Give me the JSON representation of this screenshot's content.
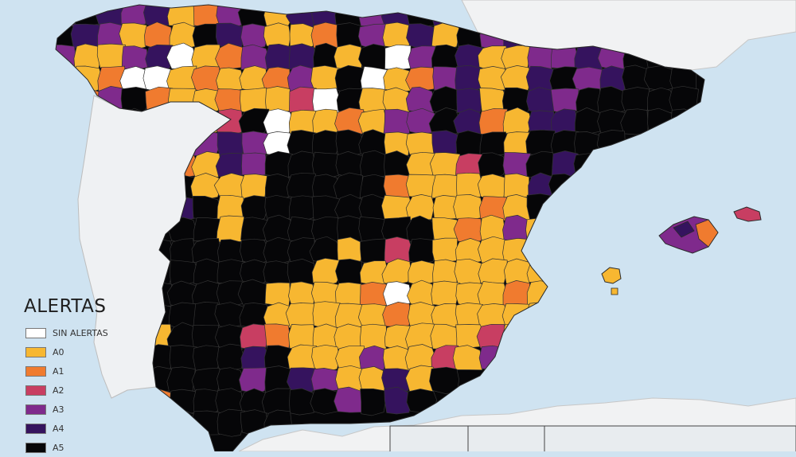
{
  "legend": {
    "title": "ALERTAS",
    "items": [
      {
        "label": "SIN ALERTAS",
        "color": "#ffffff"
      },
      {
        "label": "A0",
        "color": "#f7b731"
      },
      {
        "label": "A1",
        "color": "#f07b2f"
      },
      {
        "label": "A2",
        "color": "#c83e62"
      },
      {
        "label": "A3",
        "color": "#7f2a8c"
      },
      {
        "label": "A4",
        "color": "#35135e"
      },
      {
        "label": "A5",
        "color": "#060608"
      }
    ]
  },
  "colors": {
    "sea": "#cfe3f1",
    "land_outside": "#f3f4f5",
    "border": "#b9b9b9",
    "district_border": "#3a3a3a"
  }
}
